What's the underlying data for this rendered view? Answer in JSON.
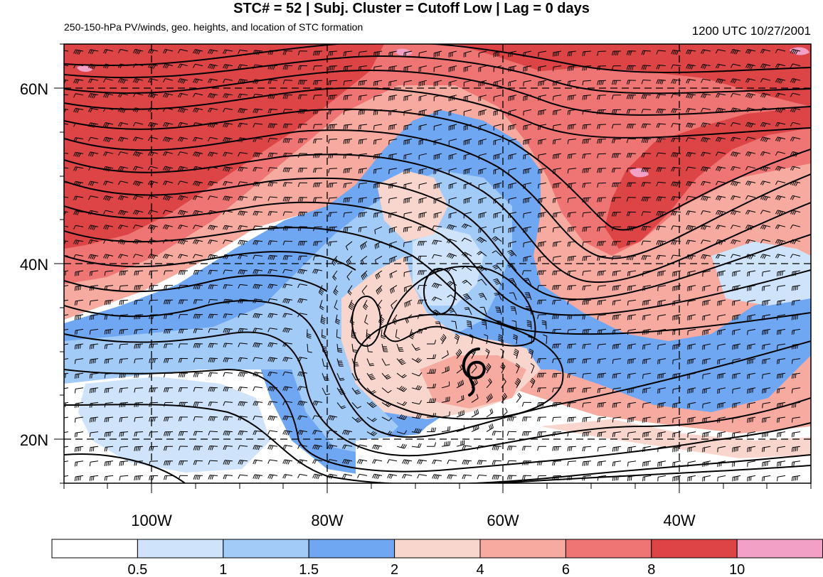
{
  "header": {
    "title": "STC# = 52 | Subj. Cluster = Cutoff Low | Lag = 0 days",
    "subtitle": "250-150-hPa PV/winds, geo. heights, and location of STC formation",
    "datetime": "1200 UTC  10/27/2001"
  },
  "map": {
    "lat_labels": [
      "60N",
      "40N",
      "20N"
    ],
    "lon_labels": [
      "100W",
      "80W",
      "60W",
      "40W"
    ],
    "region": "North Atlantic / eastern North America",
    "formation_symbol": "tropical-cyclone-symbol",
    "colors": {
      "lt05": "#ffffff",
      "b05_1": "#cfe3fb",
      "b1_15": "#a3cbf8",
      "b15_2": "#6fa7f2",
      "b2_4": "#f9d6cd",
      "b4_6": "#f6aaa0",
      "b6_8": "#ef7574",
      "b8_10": "#dc4446",
      "gt10": "#f2a0c6"
    }
  },
  "colorbar": {
    "labels": [
      "0.5",
      "1",
      "1.5",
      "2",
      "4",
      "6",
      "8",
      "10"
    ]
  }
}
